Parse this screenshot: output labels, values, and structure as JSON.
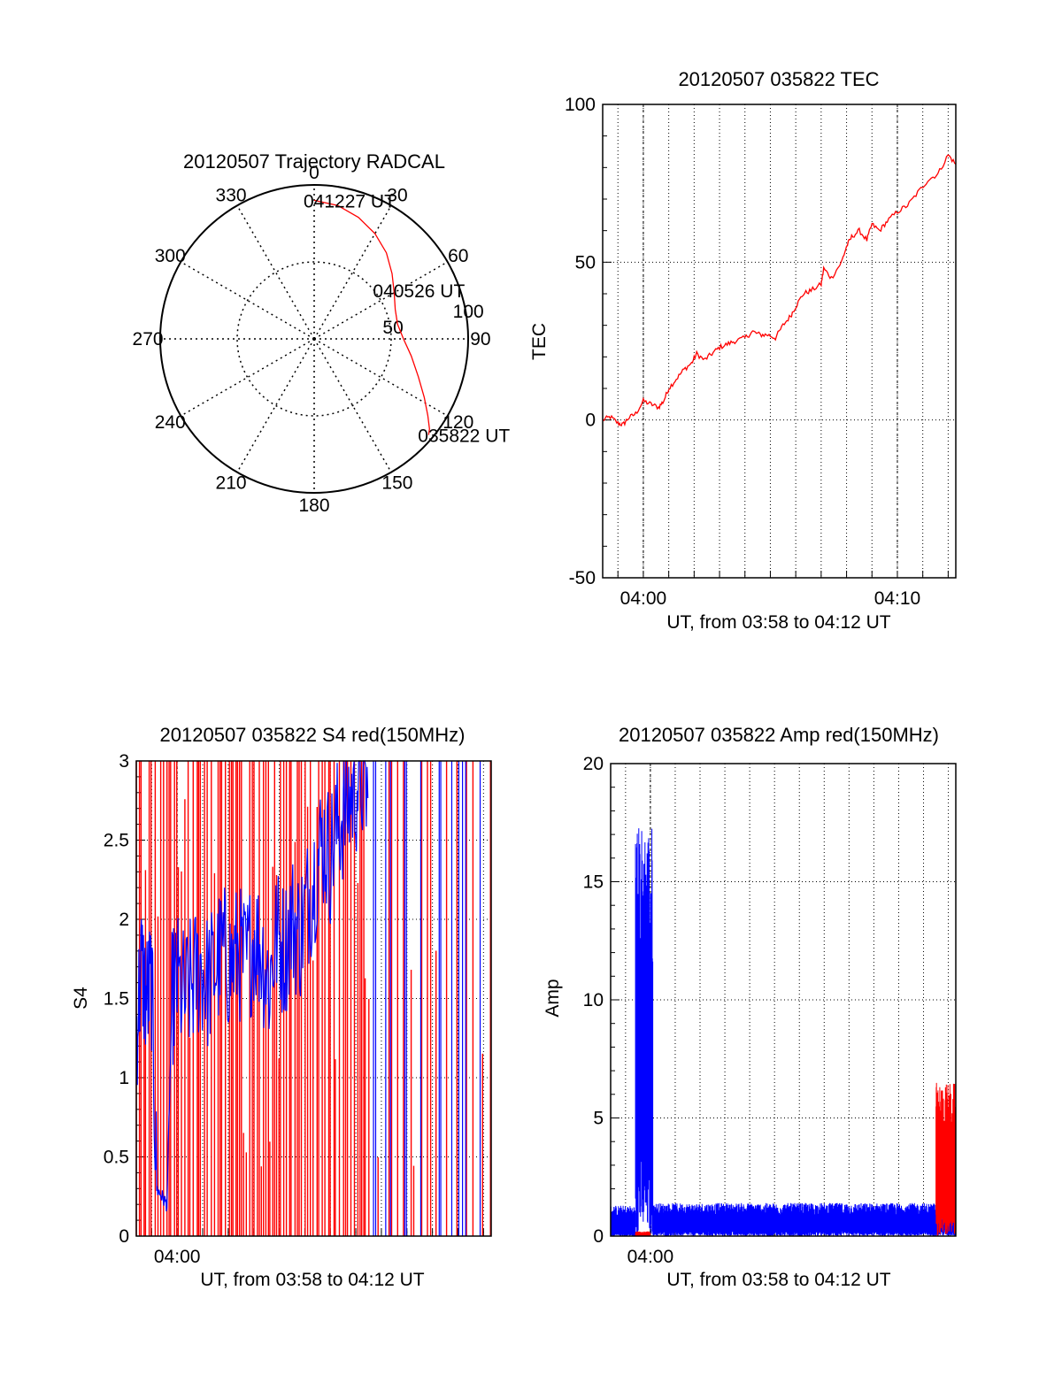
{
  "chart_data": [
    {
      "type": "polar",
      "title": "20120507 Trajectory RADCAL",
      "azimuth_labels": [
        "0",
        "30",
        "60",
        "90",
        "120",
        "150",
        "180",
        "210",
        "240",
        "270",
        "300",
        "330"
      ],
      "radial_labels": [
        "50",
        "100"
      ],
      "rlim": [
        0,
        100
      ],
      "grid": true,
      "annotations": [
        {
          "text": "041227 UT",
          "az": 0,
          "r": 90
        },
        {
          "text": "040526 UT",
          "az": 55,
          "r": 55
        },
        {
          "text": "035822 UT",
          "az": 130,
          "r": 97
        }
      ],
      "series": [
        {
          "color": "#ff0000",
          "points": [
            [
              0,
              90
            ],
            [
              10,
              88
            ],
            [
              20,
              84
            ],
            [
              30,
              79
            ],
            [
              40,
              73
            ],
            [
              50,
              66
            ],
            [
              60,
              60
            ],
            [
              70,
              56
            ],
            [
              80,
              55
            ],
            [
              90,
              58
            ],
            [
              100,
              64
            ],
            [
              110,
              72
            ],
            [
              118,
              81
            ],
            [
              124,
              89
            ],
            [
              128,
              95
            ],
            [
              130,
              97
            ]
          ]
        }
      ]
    },
    {
      "type": "line",
      "title": "20120507 035822 TEC",
      "xlabel": "UT, from 03:58 to 04:12 UT",
      "ylabel": "TEC",
      "xlim": [
        -1.6,
        12.3
      ],
      "ylim": [
        -50,
        100
      ],
      "yticks": [
        -50,
        0,
        50,
        100
      ],
      "xticks": [
        {
          "x": 0,
          "label": "04:00"
        },
        {
          "x": 10,
          "label": "04:10"
        }
      ],
      "grid": true,
      "series": [
        {
          "color": "#ff0000",
          "points": [
            [
              -1.6,
              0
            ],
            [
              -1.3,
              1
            ],
            [
              -1,
              -1
            ],
            [
              -0.8,
              -1.5
            ],
            [
              -0.6,
              0.5
            ],
            [
              -0.3,
              2
            ],
            [
              0,
              6
            ],
            [
              0.3,
              5
            ],
            [
              0.6,
              4
            ],
            [
              0.8,
              6
            ],
            [
              1,
              10
            ],
            [
              1.3,
              13
            ],
            [
              1.6,
              16
            ],
            [
              1.9,
              18
            ],
            [
              2.1,
              21
            ],
            [
              2.4,
              19
            ],
            [
              2.7,
              21
            ],
            [
              3,
              23
            ],
            [
              3.3,
              24
            ],
            [
              3.6,
              25
            ],
            [
              4,
              26
            ],
            [
              4.3,
              28
            ],
            [
              4.6,
              27
            ],
            [
              4.9,
              27
            ],
            [
              5.2,
              26
            ],
            [
              5.5,
              30
            ],
            [
              5.8,
              33
            ],
            [
              6,
              36
            ],
            [
              6.3,
              40
            ],
            [
              6.6,
              41
            ],
            [
              7,
              43
            ],
            [
              7.1,
              48
            ],
            [
              7.4,
              45
            ],
            [
              7.8,
              50
            ],
            [
              8,
              55
            ],
            [
              8.2,
              58
            ],
            [
              8.5,
              60
            ],
            [
              8.8,
              57
            ],
            [
              9,
              62
            ],
            [
              9.3,
              60
            ],
            [
              9.6,
              63
            ],
            [
              10,
              66
            ],
            [
              10.4,
              68
            ],
            [
              10.8,
              72
            ],
            [
              11.2,
              76
            ],
            [
              11.6,
              78
            ],
            [
              12,
              84
            ],
            [
              12.3,
              81
            ]
          ]
        }
      ]
    },
    {
      "type": "line",
      "title": "20120507 035822 S4 red(150MHz)",
      "xlabel": "UT, from 03:58 to 04:12 UT",
      "ylabel": "S4",
      "xlim": [
        -1.6,
        12.3
      ],
      "ylim": [
        0,
        3
      ],
      "yticks": [
        0,
        0.5,
        1,
        1.5,
        2,
        2.5,
        3
      ],
      "ytick_labels": [
        "0",
        "0.5",
        "1",
        "1.5",
        "2",
        "2.5",
        "3"
      ],
      "xticks": [
        {
          "x": 0,
          "label": "04:00"
        }
      ],
      "grid": true,
      "series": [
        {
          "name": "red",
          "color": "#ff0000",
          "style": "spikes",
          "min": 0,
          "max": 3
        },
        {
          "name": "blue",
          "color": "#0000ff",
          "points": [
            [
              -1.6,
              1.3
            ],
            [
              -1.4,
              1.7
            ],
            [
              -1.2,
              1.5
            ],
            [
              -1,
              1.6
            ],
            [
              -0.8,
              0.3
            ],
            [
              -0.6,
              0.25
            ],
            [
              -0.4,
              0.2
            ],
            [
              -0.2,
              1.5
            ],
            [
              0,
              1.6
            ],
            [
              0.3,
              1.5
            ],
            [
              0.6,
              1.6
            ],
            [
              0.9,
              1.7
            ],
            [
              1.2,
              1.6
            ],
            [
              1.5,
              1.7
            ],
            [
              1.8,
              1.8
            ],
            [
              2.1,
              1.7
            ],
            [
              2.4,
              1.8
            ],
            [
              2.7,
              1.7
            ],
            [
              3,
              1.9
            ],
            [
              3.3,
              1.8
            ],
            [
              3.6,
              1.6
            ],
            [
              3.9,
              1.9
            ],
            [
              4.2,
              1.8
            ],
            [
              4.5,
              2.0
            ],
            [
              4.8,
              1.9
            ],
            [
              5.1,
              2.1
            ],
            [
              5.4,
              2.3
            ],
            [
              5.7,
              2.5
            ],
            [
              6,
              2.4
            ],
            [
              6.3,
              2.6
            ],
            [
              6.6,
              2.7
            ],
            [
              6.9,
              2.8
            ],
            [
              7.2,
              2.9
            ],
            [
              7.5,
              2.8
            ]
          ]
        }
      ]
    },
    {
      "type": "line",
      "title": "20120507 035822 Amp red(150MHz)",
      "xlabel": "UT, from 03:58 to 04:12 UT",
      "ylabel": "Amp",
      "xlim": [
        -1.6,
        12.3
      ],
      "ylim": [
        0,
        20
      ],
      "yticks": [
        0,
        5,
        10,
        15,
        20
      ],
      "xticks": [
        {
          "x": 0,
          "label": "04:00"
        }
      ],
      "grid": true,
      "series": [
        {
          "name": "blue",
          "color": "#0000ff",
          "segments": [
            {
              "x0": -1.6,
              "x1": -0.6,
              "low": 0.1,
              "high": 1.3
            },
            {
              "x0": -0.6,
              "x1": 0.1,
              "low": 3.5,
              "high": 17.5
            },
            {
              "x0": 0.1,
              "x1": 11.5,
              "low": 0.2,
              "high": 1.4
            },
            {
              "x0": 11.5,
              "x1": 12.3,
              "low": 0.3,
              "high": 0.8
            }
          ]
        },
        {
          "name": "red",
          "color": "#ff0000",
          "segments": [
            {
              "x0": -0.6,
              "x1": 0.0,
              "low": 0.0,
              "high": 0.2
            },
            {
              "x0": 11.5,
              "x1": 12.3,
              "low": 1.0,
              "high": 6.5
            }
          ]
        }
      ]
    }
  ]
}
